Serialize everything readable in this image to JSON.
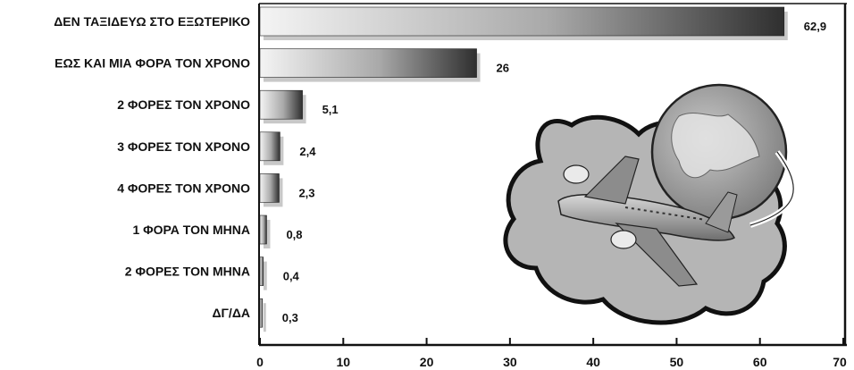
{
  "chart_data": {
    "type": "bar",
    "orientation": "horizontal",
    "categories": [
      "ΔΕΝ ΤΑΞΙΔΕΥΩ ΣΤΟ ΕΞΩΤΕΡΙΚΟ",
      "ΕΩΣ ΚΑΙ ΜΙΑ ΦΟΡΑ ΤΟΝ ΧΡΟΝΟ",
      "2 ΦΟΡΕΣ ΤΟΝ ΧΡΟΝΟ",
      "3 ΦΟΡΕΣ ΤΟΝ ΧΡΟΝΟ",
      "4 ΦΟΡΕΣ ΤΟΝ ΧΡΟΝΟ",
      "1 ΦΟΡΑ ΤΟΝ ΜΗΝΑ",
      "2 ΦΟΡΕΣ ΤΟΝ ΜΗΝΑ",
      "ΔΓ/ΔΑ"
    ],
    "values": [
      62.9,
      26,
      5.1,
      2.4,
      2.3,
      0.8,
      0.4,
      0.3
    ],
    "value_labels": [
      "62,9",
      "26",
      "5,1",
      "2,4",
      "2,3",
      "0,8",
      "0,4",
      "0,3"
    ],
    "xlim": [
      0,
      70
    ],
    "xticks": [
      "0",
      "10",
      "20",
      "30",
      "40",
      "50",
      "60",
      "70"
    ],
    "grid": false,
    "legend": "none",
    "colors": {
      "bar_dark": "#3a3a3a",
      "bar_light": "#f4f4f4",
      "frame": "#111111"
    },
    "decoration": [
      "airplane-icon",
      "globe-icon",
      "cloud-blob"
    ]
  }
}
